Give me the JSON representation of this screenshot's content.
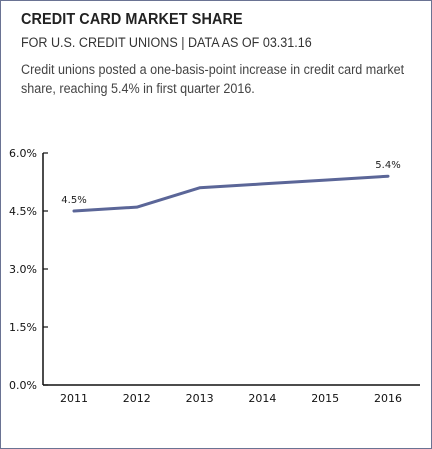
{
  "title": "CREDIT CARD MARKET SHARE",
  "subtitle": "FOR U.S. CREDIT UNIONS | DATA AS OF 03.31.16",
  "description_line1": "Credit unions posted a one-basis-point increase in credit card market",
  "description_line2": "share, reaching 5.4% in first quarter 2016.",
  "colors": {
    "line": "#5b6698",
    "axis": "#111111",
    "border": "#6a7393"
  },
  "chart_data": {
    "type": "line",
    "categories": [
      "2011",
      "2012",
      "2013",
      "2014",
      "2015",
      "2016"
    ],
    "series": [
      {
        "values": [
          4.5,
          4.6,
          5.1,
          5.2,
          5.3,
          5.4
        ]
      }
    ],
    "data_labels": [
      {
        "index": 0,
        "text": "4.5%"
      },
      {
        "index": 5,
        "text": "5.4%"
      }
    ],
    "y_ticks": [
      "0.0%",
      "1.5%",
      "3.0%",
      "4.5%",
      "6.0%"
    ],
    "y_tick_values": [
      0,
      1.5,
      3.0,
      4.5,
      6.0
    ],
    "ylim": [
      0,
      6
    ],
    "xlabel": "",
    "ylabel": "",
    "grid": false
  }
}
